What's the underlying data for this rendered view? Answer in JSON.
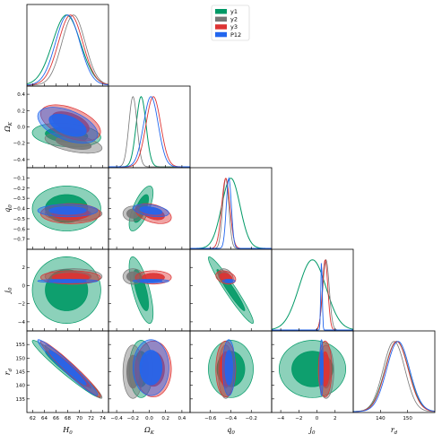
{
  "chart_data": {
    "type": "corner-plot",
    "parameters": [
      {
        "key": "H0",
        "label": "H",
        "sub": "0",
        "range": [
          61,
          75
        ],
        "ticks": [
          62,
          64,
          66,
          68,
          70,
          72,
          74
        ]
      },
      {
        "key": "Ok",
        "label": "Ω",
        "sub": "K",
        "range": [
          -0.5,
          0.5
        ],
        "ticks": [
          -0.4,
          -0.2,
          0.0,
          0.2,
          0.4
        ]
      },
      {
        "key": "q0",
        "label": "q",
        "sub": "0",
        "range": [
          -0.8,
          0.0
        ],
        "ticks": [
          -0.6,
          -0.4,
          -0.2
        ]
      },
      {
        "key": "j0",
        "label": "j",
        "sub": "0",
        "range": [
          -5,
          4
        ],
        "ticks": [
          -4,
          -2,
          0,
          2
        ]
      },
      {
        "key": "rd",
        "label": "r",
        "sub": "d",
        "range": [
          130,
          160
        ],
        "ticks": [
          140,
          150
        ]
      }
    ],
    "ytick_lists": {
      "Ok": [
        -0.4,
        -0.2,
        0.0,
        0.2,
        0.4
      ],
      "q0": [
        -0.7,
        -0.6,
        -0.5,
        -0.4,
        -0.3,
        -0.2,
        -0.1
      ],
      "j0": [
        -4,
        -2,
        0,
        2
      ],
      "rd": [
        135,
        140,
        145,
        150,
        155
      ]
    },
    "series": [
      {
        "name": "y1",
        "color": "#009966",
        "lw": 1.0,
        "mean": {
          "H0": 67.8,
          "Ok": -0.1,
          "q0": -0.4,
          "j0": -0.5,
          "rd": 146
        },
        "std": {
          "H0": 2.4,
          "Ok": 0.06,
          "q0": 0.09,
          "j0": 1.5,
          "rd": 4.3
        },
        "corr": {
          "H0_Ok": -0.2,
          "H0_q0": 0.0,
          "H0_j0": 0.0,
          "H0_rd": -0.97,
          "Ok_q0": 0.7,
          "Ok_j0": -0.7,
          "Ok_rd": 0.0,
          "q0_j0": -0.96,
          "q0_rd": 0.0,
          "j0_rd": 0.0
        }
      },
      {
        "name": "y2",
        "color": "#777777",
        "lw": 0.8,
        "mean": {
          "H0": 69.0,
          "Ok": -0.2,
          "q0": -0.45,
          "j0": 1.0,
          "rd": 145
        },
        "std": {
          "H0": 2.0,
          "Ok": 0.05,
          "q0": 0.03,
          "j0": 0.35,
          "rd": 4.0
        },
        "corr": {
          "H0_Ok": -0.5,
          "H0_q0": 0.0,
          "H0_j0": 0.0,
          "H0_rd": -0.97,
          "Ok_q0": 0.0,
          "Ok_j0": 0.0,
          "Ok_rd": 0.0,
          "q0_j0": -0.3,
          "q0_rd": 0.0,
          "j0_rd": 0.0
        }
      },
      {
        "name": "y3",
        "color": "#dd3333",
        "lw": 0.9,
        "mean": {
          "H0": 68.5,
          "Ok": 0.05,
          "q0": -0.45,
          "j0": 0.9,
          "rd": 146
        },
        "std": {
          "H0": 2.1,
          "Ok": 0.09,
          "q0": 0.04,
          "j0": 0.3,
          "rd": 4.2
        },
        "corr": {
          "H0_Ok": -0.5,
          "H0_q0": 0.0,
          "H0_j0": 0.0,
          "H0_rd": -0.97,
          "Ok_q0": -0.4,
          "Ok_j0": 0.0,
          "Ok_rd": 0.0,
          "q0_j0": -0.3,
          "q0_rd": 0.0,
          "j0_rd": 0.0
        }
      },
      {
        "name": "P12",
        "color": "#2266ee",
        "lw": 0.9,
        "mean": {
          "H0": 68.0,
          "Ok": 0.02,
          "q0": -0.42,
          "j0": 0.5,
          "rd": 146.5
        },
        "std": {
          "H0": 2.1,
          "Ok": 0.09,
          "q0": 0.025,
          "j0": 0.08,
          "rd": 4.2
        },
        "corr": {
          "H0_Ok": -0.5,
          "H0_q0": 0.0,
          "H0_j0": 0.0,
          "H0_rd": -0.97,
          "Ok_q0": -0.4,
          "Ok_j0": 0.0,
          "Ok_rd": 0.0,
          "q0_j0": 0.0,
          "q0_rd": 0.0,
          "j0_rd": 0.0
        }
      }
    ],
    "legend_position": "top-right",
    "grid": false
  }
}
